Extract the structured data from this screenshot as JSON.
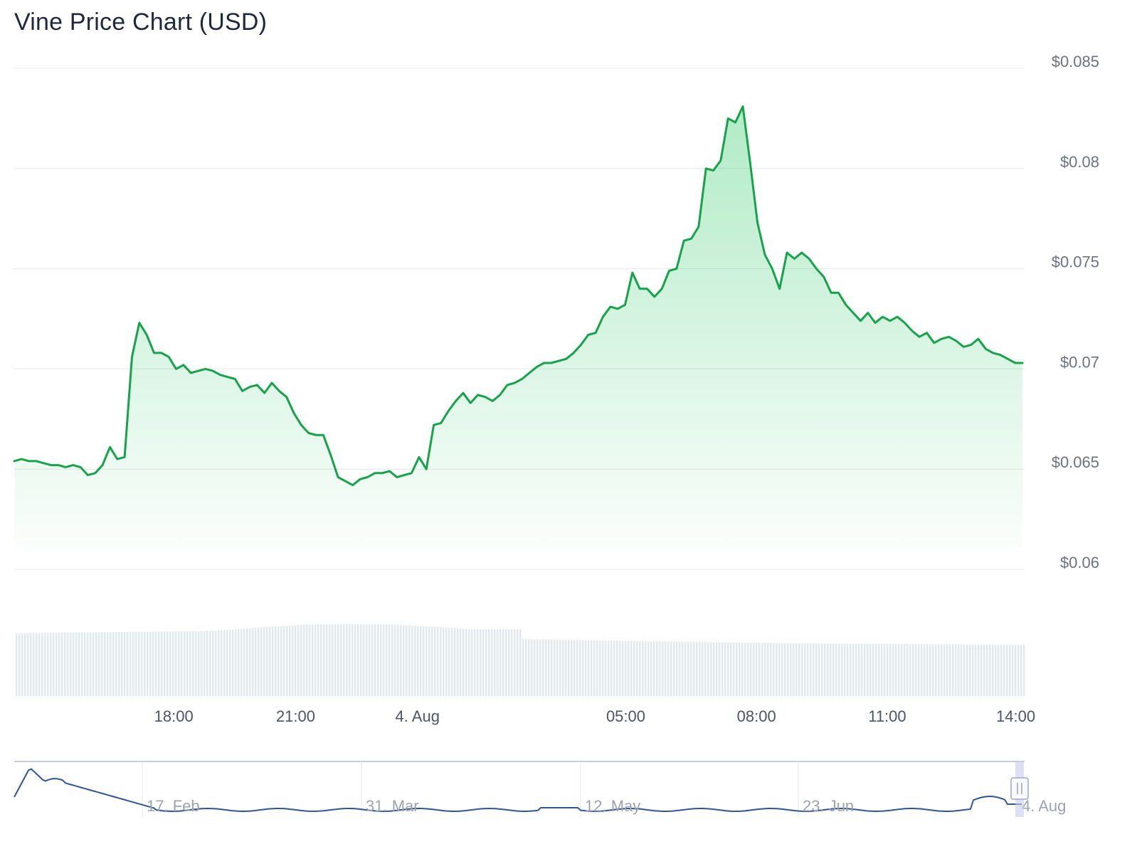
{
  "title": "Vine Price Chart (USD)",
  "colors": {
    "price_line": "#16a34a",
    "area_fill": "#22c55e",
    "grid": "#e5e7eb",
    "volume": "#e2e8f0",
    "navigator_line": "#2f5597",
    "navigator_border": "#c7cbe8"
  },
  "chart_data": {
    "type": "line",
    "title": "Vine Price Chart (USD)",
    "ylim": [
      0.06,
      0.085
    ],
    "y_ticks": [
      "$0.085",
      "$0.08",
      "$0.075",
      "$0.07",
      "$0.065",
      "$0.06"
    ],
    "y_tick_values": [
      0.085,
      0.08,
      0.075,
      0.07,
      0.065,
      0.06
    ],
    "x_range_hours": [
      15.5,
      38.3
    ],
    "x_ticks": [
      {
        "label": "18:00",
        "hour": 19.1
      },
      {
        "label": "21:00",
        "hour": 21.85
      },
      {
        "label": "4. Aug",
        "hour": 24.6
      },
      {
        "label": "05:00",
        "hour": 29.3
      },
      {
        "label": "08:00",
        "hour": 32.25
      },
      {
        "label": "11:00",
        "hour": 35.2
      },
      {
        "label": "14:00",
        "hour": 38.1
      }
    ],
    "series": [
      {
        "values": [
          0.0654,
          0.0655,
          0.0654,
          0.0654,
          0.0653,
          0.0652,
          0.0652,
          0.0651,
          0.0652,
          0.0651,
          0.0647,
          0.0648,
          0.0652,
          0.0661,
          0.0655,
          0.0656,
          0.0706,
          0.0723,
          0.0717,
          0.0708,
          0.0708,
          0.0706,
          0.07,
          0.0702,
          0.0698,
          0.0699,
          0.07,
          0.0699,
          0.0697,
          0.0696,
          0.0695,
          0.0689,
          0.0691,
          0.0692,
          0.0688,
          0.0693,
          0.0689,
          0.0686,
          0.0678,
          0.0672,
          0.0668,
          0.0667,
          0.0667,
          0.0657,
          0.0646,
          0.0644,
          0.0642,
          0.0645,
          0.0646,
          0.0648,
          0.0648,
          0.0649,
          0.0646,
          0.0647,
          0.0648,
          0.0656,
          0.065,
          0.0672,
          0.0673,
          0.0679,
          0.0684,
          0.0688,
          0.0683,
          0.0687,
          0.0686,
          0.0684,
          0.0687,
          0.0692,
          0.0693,
          0.0695,
          0.0698,
          0.0701,
          0.0703,
          0.0703,
          0.0704,
          0.0705,
          0.0708,
          0.0712,
          0.0717,
          0.0718,
          0.0726,
          0.0731,
          0.073,
          0.0732,
          0.0748,
          0.074,
          0.074,
          0.0736,
          0.074,
          0.0749,
          0.075,
          0.0764,
          0.0765,
          0.0771,
          0.08,
          0.0799,
          0.0804,
          0.0825,
          0.0823,
          0.0831,
          0.0803,
          0.0773,
          0.0757,
          0.075,
          0.074,
          0.0758,
          0.0755,
          0.0758,
          0.0755,
          0.075,
          0.0746,
          0.0738,
          0.0738,
          0.0732,
          0.0728,
          0.0724,
          0.0728,
          0.0723,
          0.0726,
          0.0724,
          0.0726,
          0.0723,
          0.0719,
          0.0716,
          0.0718,
          0.0713,
          0.0715,
          0.0716,
          0.0714,
          0.0711,
          0.0712,
          0.0715,
          0.071,
          0.0708,
          0.0707,
          0.0705,
          0.0703,
          0.0703
        ]
      }
    ],
    "volume_note": "volume bars shown without axis",
    "navigator": {
      "x_ticks": [
        "17. Feb",
        "31. Mar",
        "12. May",
        "23. Jun",
        "4. Aug"
      ]
    }
  }
}
